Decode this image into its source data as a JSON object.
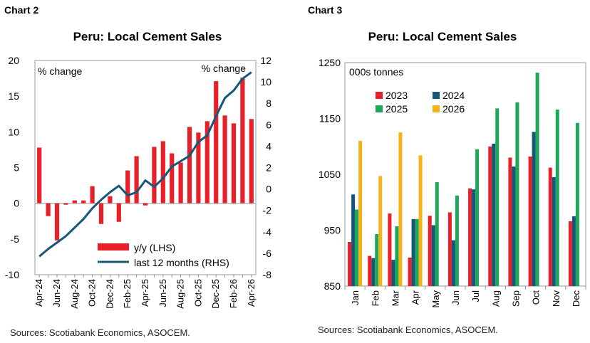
{
  "left": {
    "label": "Chart 2",
    "title": "Peru: Local Cement Sales",
    "source": "Sources: Scotiabank Economics, ASOCEM."
  },
  "right": {
    "label": "Chart 3",
    "title": "Peru: Local Cement Sales",
    "source": "Sources: Scotiabank Economics, ASOCEM."
  },
  "chart_data": [
    {
      "type": "bar",
      "title": "Peru: Local Cement Sales",
      "ylabel_left": "% change",
      "ylabel_right": "% change",
      "ylim_left": [
        -10,
        20
      ],
      "ylim_right": [
        -8,
        12
      ],
      "yticks_left": [
        -10,
        -5,
        0,
        5,
        10,
        15,
        20
      ],
      "yticks_right": [
        -8,
        -6,
        -4,
        -2,
        0,
        2,
        4,
        6,
        8,
        10,
        12
      ],
      "x": [
        "Apr-24",
        "May-24",
        "Jun-24",
        "Jul-24",
        "Aug-24",
        "Sep-24",
        "Oct-24",
        "Nov-24",
        "Dec-24",
        "Jan-25",
        "Feb-25",
        "Mar-25",
        "Apr-25",
        "May-25",
        "Jun-25",
        "Jul-25",
        "Aug-25",
        "Sep-25",
        "Oct-25",
        "Nov-25",
        "Dec-25",
        "Jan-26",
        "Feb-26",
        "Mar-26",
        "Apr-26"
      ],
      "xtick_labels": [
        "Apr-24",
        "Jun-24",
        "Aug-24",
        "Oct-24",
        "Dec-24",
        "Feb-25",
        "Apr-25",
        "Jun-25",
        "Aug-25",
        "Oct-25",
        "Dec-25",
        "Feb-26",
        "Apr-26"
      ],
      "legend_position": "bottom-right",
      "series": [
        {
          "name": "y/y (LHS)",
          "kind": "bar",
          "axis": "left",
          "color": "#e8202a",
          "values": [
            7.8,
            -1.8,
            -5.2,
            -0.2,
            0.4,
            0.4,
            2.4,
            -2.9,
            1.0,
            -2.6,
            4.6,
            6.6,
            -0.3,
            7.9,
            8.7,
            7.0,
            5.7,
            10.7,
            9.9,
            11.5,
            17.1,
            12.3,
            11.2,
            17.6,
            11.8
          ]
        },
        {
          "name": "last 12 months (RHS)",
          "kind": "line",
          "axis": "right",
          "color": "#15577a",
          "values": [
            -6.3,
            -5.6,
            -5.0,
            -4.4,
            -3.6,
            -2.8,
            -1.8,
            -1.0,
            -0.3,
            0.3,
            -0.6,
            -0.3,
            0.8,
            0.2,
            1.0,
            2.1,
            2.6,
            3.1,
            4.4,
            5.0,
            6.8,
            8.5,
            9.2,
            10.3,
            10.9
          ]
        }
      ]
    },
    {
      "type": "bar",
      "title": "Peru: Local Cement Sales",
      "ylabel": "000s tonnes",
      "ylim": [
        850,
        1250
      ],
      "yticks": [
        850,
        950,
        1050,
        1150,
        1250
      ],
      "categories": [
        "Jan",
        "Feb",
        "Mar",
        "Apr",
        "May",
        "Jun",
        "Jul",
        "Aug",
        "Sep",
        "Oct",
        "Nov",
        "Dec"
      ],
      "legend_position": "top-left",
      "series": [
        {
          "name": "2023",
          "color": "#e8202a",
          "values": [
            929,
            904,
            980,
            901,
            976,
            982,
            1025,
            1100,
            1080,
            1082,
            1062,
            966
          ]
        },
        {
          "name": "2024",
          "color": "#15577a",
          "values": [
            1014,
            900,
            897,
            970,
            959,
            932,
            1023,
            1105,
            1064,
            1126,
            1045,
            975
          ]
        },
        {
          "name": "2025",
          "color": "#1ea65a",
          "values": [
            987,
            943,
            957,
            970,
            1036,
            1012,
            1095,
            1168,
            1179,
            1232,
            1166,
            1142
          ]
        },
        {
          "name": "2026",
          "color": "#f6b318",
          "values": [
            1110,
            1047,
            1125,
            1084,
            null,
            null,
            null,
            null,
            null,
            null,
            null,
            null
          ]
        }
      ]
    }
  ]
}
